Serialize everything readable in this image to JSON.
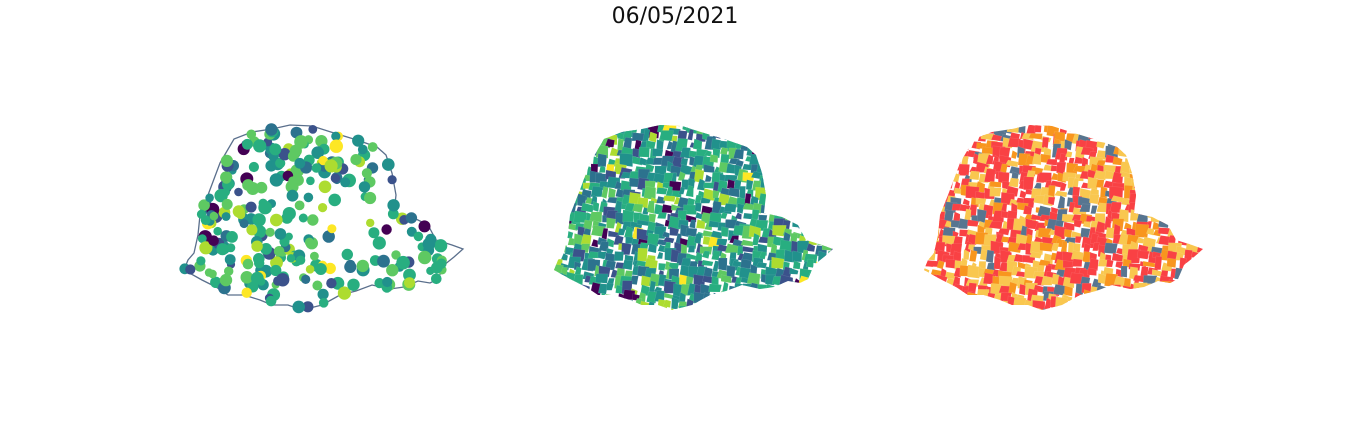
{
  "figure": {
    "title": "06/05/2021"
  },
  "maps": [
    {
      "id": "bubbles",
      "style": "proportional-symbols",
      "outline_color": "#5a6f8c",
      "palette": [
        "#440154",
        "#3b528b",
        "#2c728e",
        "#21918c",
        "#28ae80",
        "#5ec962",
        "#addc30",
        "#fde725"
      ]
    },
    {
      "id": "choropleth-continuous",
      "style": "choropleth",
      "palette": [
        "#440154",
        "#3b528b",
        "#2c728e",
        "#21918c",
        "#28ae80",
        "#5ec962",
        "#addc30",
        "#fde725"
      ]
    },
    {
      "id": "choropleth-categorical",
      "style": "choropleth",
      "palette": [
        "#f94144",
        "#f9c74f",
        "#f8961e",
        "#577590"
      ]
    }
  ]
}
